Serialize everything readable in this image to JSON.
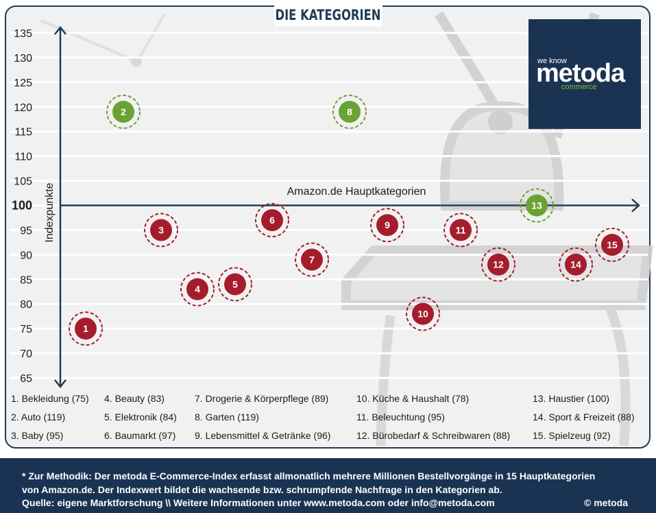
{
  "title": "DIE KATEGORIEN",
  "logo": {
    "tagline": "we know",
    "brand": "metoda",
    "sub": "commerce"
  },
  "colors": {
    "navy": "#1f3a55",
    "below_index": "#a51d2d",
    "above_index": "#6aa233"
  },
  "chart_data": {
    "type": "scatter",
    "ylabel": "Indexpunkte",
    "xlabel": "Amazon.de Hauptkategorien",
    "ylim": [
      65,
      135
    ],
    "yticks": [
      65,
      70,
      75,
      80,
      85,
      90,
      95,
      100,
      105,
      110,
      115,
      120,
      125,
      130,
      135
    ],
    "reference_line": 100,
    "grid": true,
    "points": [
      {
        "label": "1",
        "value": 75
      },
      {
        "label": "2",
        "value": 119
      },
      {
        "label": "3",
        "value": 95
      },
      {
        "label": "4",
        "value": 83
      },
      {
        "label": "5",
        "value": 84
      },
      {
        "label": "6",
        "value": 97
      },
      {
        "label": "7",
        "value": 89
      },
      {
        "label": "8",
        "value": 119
      },
      {
        "label": "9",
        "value": 96
      },
      {
        "label": "10",
        "value": 78
      },
      {
        "label": "11",
        "value": 95
      },
      {
        "label": "12",
        "value": 88
      },
      {
        "label": "13",
        "value": 100
      },
      {
        "label": "14",
        "value": 88
      },
      {
        "label": "15",
        "value": 92
      }
    ]
  },
  "legend": [
    "1. Bekleidung (75)",
    "2. Auto (119)",
    "3. Baby (95)",
    "4. Beauty (83)",
    "5. Elektronik (84)",
    "6. Baumarkt (97)",
    "7. Drogerie & Körperpflege (89)",
    "8. Garten (119)",
    "9. Lebensmittel & Getränke (96)",
    "10. Küche & Haushalt (78)",
    "11. Beleuchtung (95)",
    "12. Bürobedarf & Schreibwaren (88)",
    "13. Haustier (100)",
    "14. Sport & Freizeit (88)",
    "15. Spielzeug (92)"
  ],
  "footer": {
    "line1": "* Zur Methodik: Der metoda E-Commerce-Index erfasst allmonatlich mehrere Millionen Bestellvorgänge in 15 Hauptkategorien",
    "line2": "von Amazon.de. Der Indexwert bildet die wachsende bzw. schrumpfende Nachfrage in den Kategorien ab.",
    "line3": "Quelle: eigene Marktforschung \\\\ Weitere Informationen unter www.metoda.com oder info@metoda.com",
    "copyright": "© metoda"
  }
}
